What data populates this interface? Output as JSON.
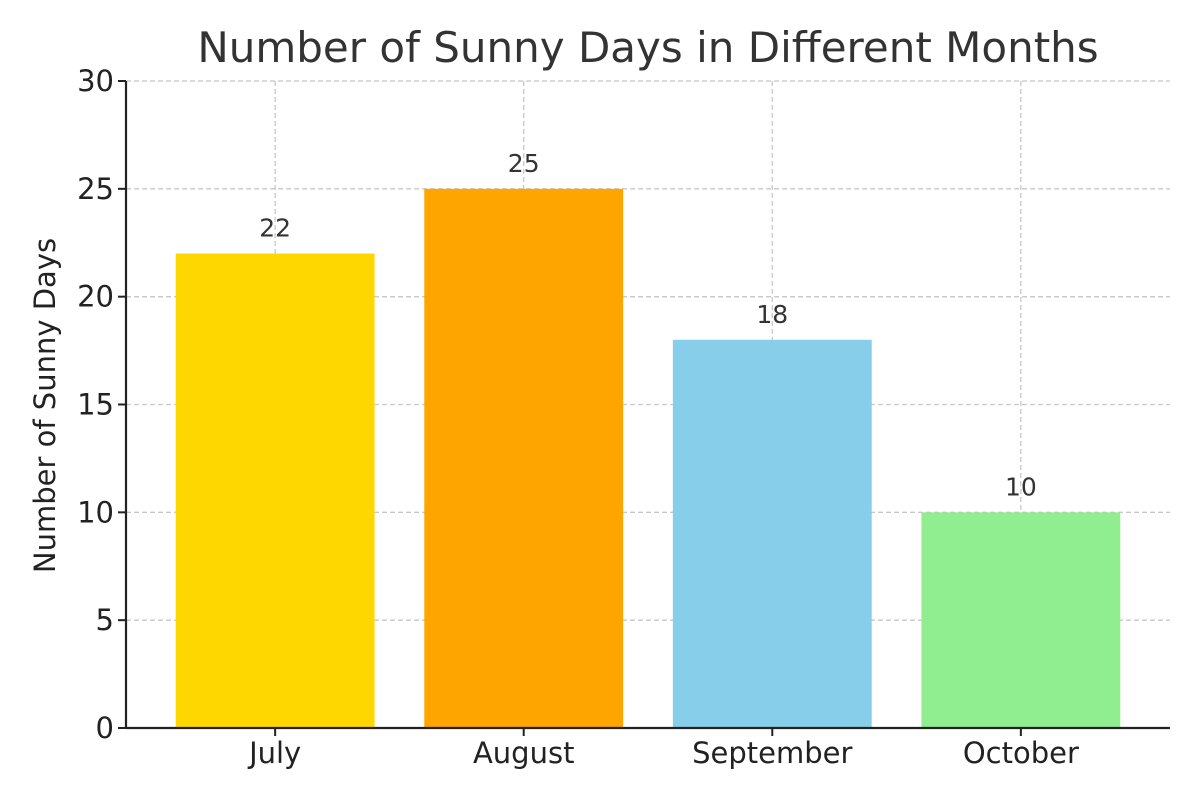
{
  "chart_data": {
    "type": "bar",
    "title": "Number of Sunny Days in Different Months",
    "xlabel": "",
    "ylabel": "Number of Sunny Days",
    "categories": [
      "July",
      "August",
      "September",
      "October"
    ],
    "values": [
      22,
      25,
      18,
      10
    ],
    "data_labels": [
      "22",
      "25",
      "18",
      "10"
    ],
    "colors": [
      "#ffd700",
      "#ffa500",
      "#87ceeb",
      "#90ee90"
    ],
    "ylim": [
      0,
      30
    ],
    "yticks": [
      0,
      5,
      10,
      15,
      20,
      25,
      30
    ],
    "ytick_labels": [
      "0",
      "5",
      "10",
      "15",
      "20",
      "25",
      "30"
    ],
    "grid": true,
    "legend": "none"
  }
}
